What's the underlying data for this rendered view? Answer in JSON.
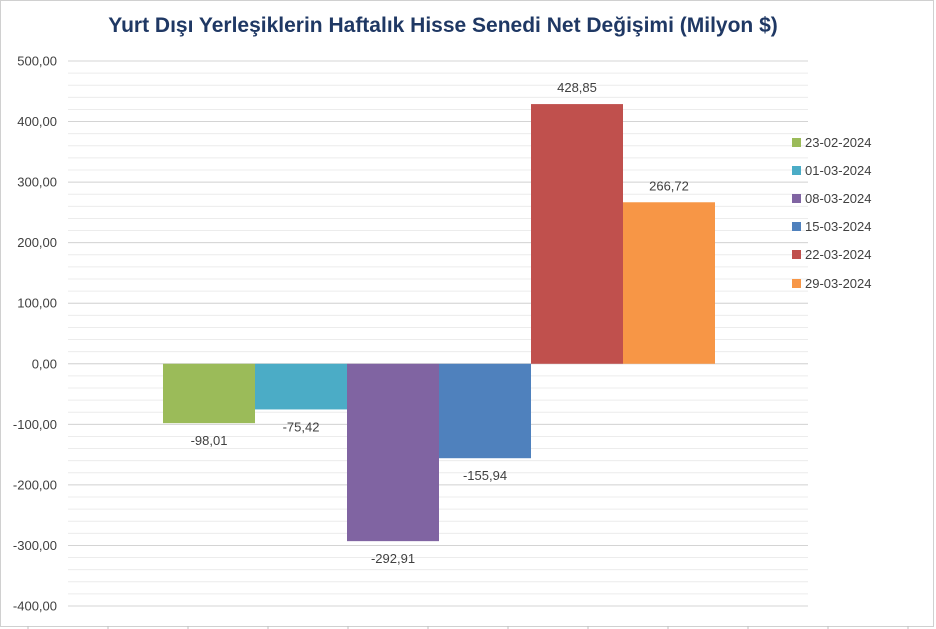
{
  "chart_data": {
    "type": "bar",
    "title": "Yurt Dışı Yerleşiklerin Haftalık Hisse Senedi Net Değişimi (Milyon $)",
    "xlabel": "",
    "ylabel": "",
    "ylim": [
      -400,
      500
    ],
    "yticks": [
      500,
      400,
      300,
      200,
      100,
      0,
      -100,
      -200,
      -300,
      -400
    ],
    "ytick_labels": [
      "500,00",
      "400,00",
      "300,00",
      "200,00",
      "100,00",
      "0,00",
      "-100,00",
      "-200,00",
      "-300,00",
      "-400,00"
    ],
    "legend_position": "right",
    "grid": true,
    "series": [
      {
        "name": "23-02-2024",
        "value": -98.01,
        "label": "-98,01",
        "color": "#9bbb59"
      },
      {
        "name": "01-03-2024",
        "value": -75.42,
        "label": "-75,42",
        "color": "#4bacc6"
      },
      {
        "name": "08-03-2024",
        "value": -292.91,
        "label": "-292,91",
        "color": "#8064a2"
      },
      {
        "name": "15-03-2024",
        "value": -155.94,
        "label": "-155,94",
        "color": "#4f81bd"
      },
      {
        "name": "22-03-2024",
        "value": 428.85,
        "label": "428,85",
        "color": "#c0504d"
      },
      {
        "name": "29-03-2024",
        "value": 266.72,
        "label": "266,72",
        "color": "#f79646"
      }
    ]
  }
}
